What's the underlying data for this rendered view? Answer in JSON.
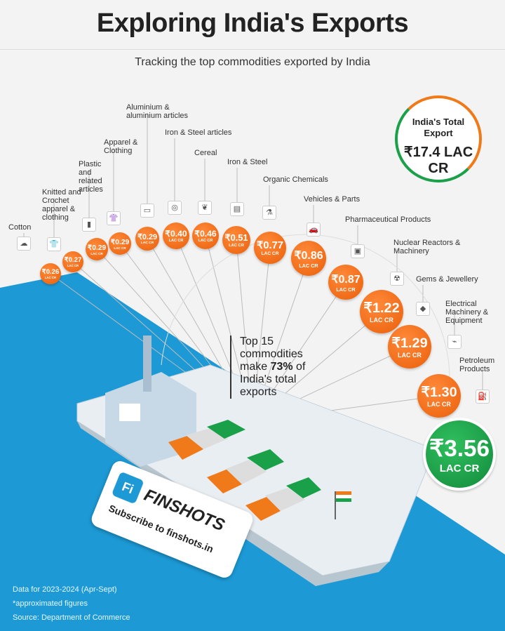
{
  "header": {
    "title": "Exploring India's Exports",
    "subtitle": "Tracking the top commodities exported by India"
  },
  "total": {
    "label": "India's Total Export",
    "value": "₹17.4 LAC CR"
  },
  "callout": {
    "line1": "Top 15 commodities make ",
    "highlight": "73%",
    "line2": " of India's total exports"
  },
  "brand": {
    "logo": "Fi",
    "name": "FINSHOTS",
    "tagline": "Subscribe to finshots.in"
  },
  "footer": {
    "line1": "Data for 2023-2024 (Apr-Sept)",
    "line2": "*approximated figures",
    "line3": "Source: Department of Commerce"
  },
  "colors": {
    "bubble": "#f07a1a",
    "top_bubble": "#1aa048",
    "sea": "#1d9ad6"
  },
  "unit": "LAC CR",
  "chart_data": {
    "type": "bubble",
    "unit": "₹ LAC CR",
    "categories": [
      "Cotton",
      "Knitted and Crochet apparel & clothing",
      "Plastic and related articles",
      "Apparel & Clothing",
      "Aluminium & aluminium articles",
      "Iron & Steel articles",
      "Cereal",
      "Iron & Steel",
      "Organic Chemicals",
      "Vehicles & Parts",
      "Pharmaceutical Products",
      "Nuclear Reactors & Machinery",
      "Gems & Jewellery",
      "Electrical Machinery & Equipment",
      "Petroleum Products"
    ],
    "values": [
      0.26,
      0.27,
      0.29,
      0.29,
      0.29,
      0.4,
      0.46,
      0.51,
      0.77,
      0.86,
      0.87,
      1.22,
      1.29,
      1.3,
      3.56
    ],
    "labels": [
      "₹0.26",
      "₹0.27",
      "₹0.29",
      "₹0.29",
      "₹0.29",
      "₹0.40",
      "₹0.46",
      "₹0.51",
      "₹0.77",
      "₹0.86",
      "₹0.87",
      "₹1.22",
      "₹1.29",
      "₹1.30",
      "₹3.56"
    ],
    "icons": [
      "cotton-icon",
      "shirt-icon",
      "bottles-icon",
      "clothing-icon",
      "foil-icon",
      "steel-coil-icon",
      "wheat-icon",
      "steel-icon",
      "flask-icon",
      "car-icon",
      "medicine-icon",
      "radiation-icon",
      "gem-icon",
      "plug-icon",
      "fuel-icon"
    ]
  }
}
